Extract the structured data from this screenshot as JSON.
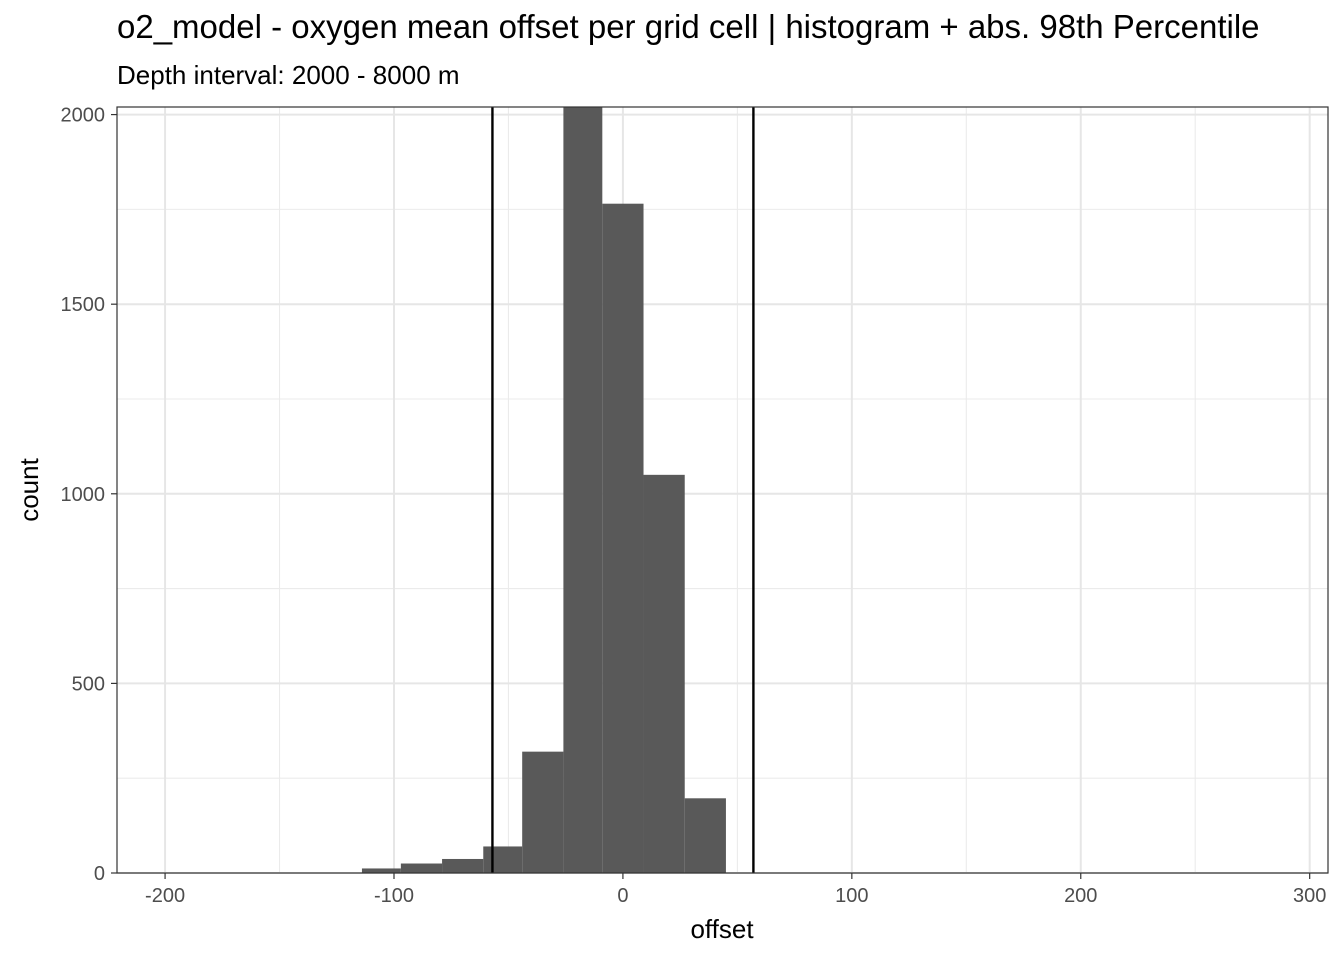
{
  "chart_data": {
    "type": "bar",
    "title": "o2_model  -  oxygen mean offset per grid cell | histogram + abs. 98th Percentile",
    "subtitle": "Depth interval: 2000 - 8000 m",
    "xlabel": "offset",
    "ylabel": "count",
    "xlim": [
      -221,
      308
    ],
    "ylim": [
      0,
      2020
    ],
    "x_ticks": [
      -200,
      -100,
      0,
      100,
      200,
      300
    ],
    "x_tick_labels": [
      "-200",
      "-100",
      "0",
      "100",
      "200",
      "300"
    ],
    "y_ticks": [
      0,
      500,
      1000,
      1500,
      2000
    ],
    "y_tick_labels": [
      "0",
      "500",
      "1000",
      "1500",
      "2000"
    ],
    "bins": [
      {
        "x0": -114,
        "x1": -97,
        "count": 12
      },
      {
        "x0": -97,
        "x1": -79,
        "count": 25
      },
      {
        "x0": -79,
        "x1": -61,
        "count": 37
      },
      {
        "x0": -61,
        "x1": -44,
        "count": 70
      },
      {
        "x0": -44,
        "x1": -26,
        "count": 320
      },
      {
        "x0": -26,
        "x1": -9,
        "count": 2020
      },
      {
        "x0": -9,
        "x1": 9,
        "count": 1765
      },
      {
        "x0": 9,
        "x1": 27,
        "count": 1050
      },
      {
        "x0": 27,
        "x1": 45,
        "count": 197
      }
    ],
    "percentile_lines": [
      -57,
      57
    ],
    "bar_color": "#595959",
    "line_color": "#000000",
    "grid": true
  }
}
